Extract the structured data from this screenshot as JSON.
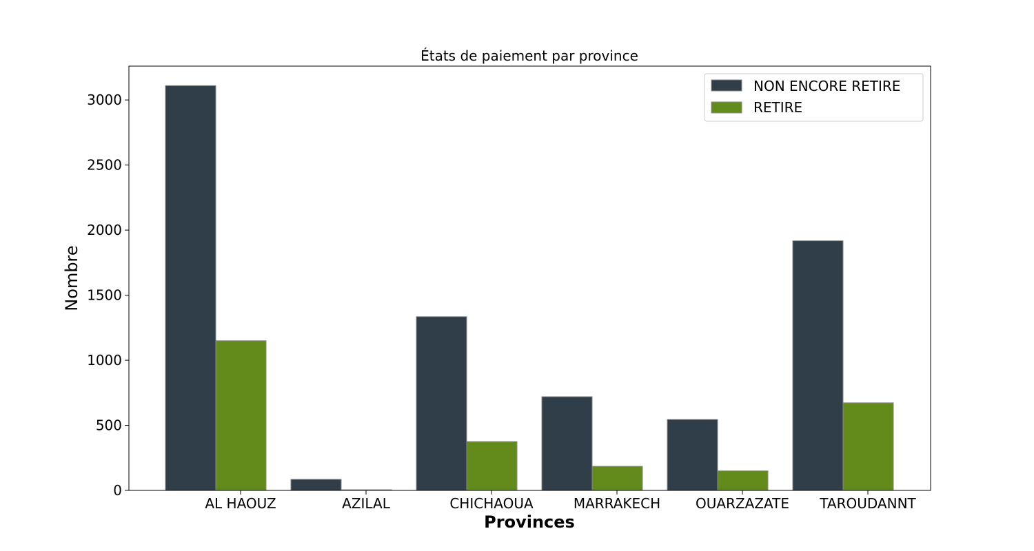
{
  "chart_data": {
    "type": "bar",
    "title": "États de paiement par province",
    "xlabel": "Provinces",
    "ylabel": "Nombre",
    "categories": [
      "AL HAOUZ",
      "AZILAL",
      "CHICHAOUA",
      "MARRAKECH",
      "OUARZAZATE",
      "TAROUDANNT"
    ],
    "series": [
      {
        "name": "NON ENCORE RETIRE",
        "color": "#2f3e48",
        "values": [
          3110,
          85,
          1335,
          720,
          545,
          1918
        ]
      },
      {
        "name": "RETIRE",
        "color": "#638b1c",
        "values": [
          1150,
          5,
          375,
          185,
          150,
          673
        ]
      }
    ],
    "ylim": [
      0,
      3260
    ],
    "yticks": [
      0,
      500,
      1000,
      1500,
      2000,
      2500,
      3000
    ],
    "grid": false,
    "legend_position": "top-right"
  }
}
